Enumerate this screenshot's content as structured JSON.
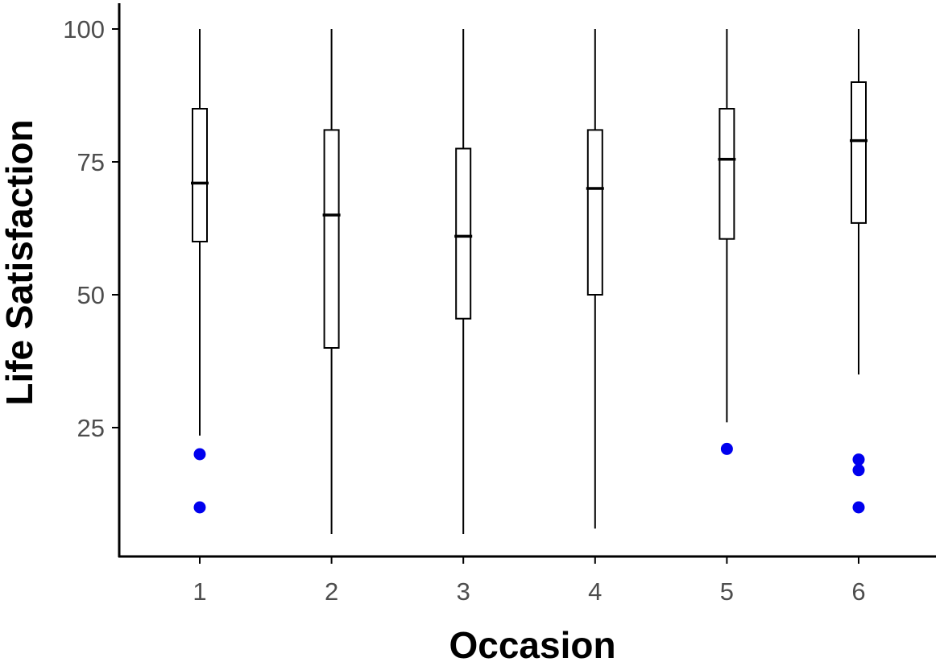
{
  "chart_data": {
    "type": "boxplot",
    "title": "",
    "xlabel": "Occasion",
    "ylabel": "Life Satisfaction",
    "categories": [
      "1",
      "2",
      "3",
      "4",
      "5",
      "6"
    ],
    "y_ticks": [
      "25",
      "50",
      "75",
      "100"
    ],
    "ylim": [
      0,
      105
    ],
    "grid": false,
    "boxes": [
      {
        "category": "1",
        "whisker_low": 23.5,
        "q1": 60,
        "median": 71,
        "q3": 85,
        "whisker_high": 100,
        "outliers": [
          20,
          10
        ]
      },
      {
        "category": "2",
        "whisker_low": 5,
        "q1": 40,
        "median": 65,
        "q3": 81,
        "whisker_high": 100,
        "outliers": []
      },
      {
        "category": "3",
        "whisker_low": 5,
        "q1": 45.5,
        "median": 61,
        "q3": 77.5,
        "whisker_high": 100,
        "outliers": []
      },
      {
        "category": "4",
        "whisker_low": 6,
        "q1": 50,
        "median": 70,
        "q3": 81,
        "whisker_high": 100,
        "outliers": []
      },
      {
        "category": "5",
        "whisker_low": 26,
        "q1": 60.5,
        "median": 75.5,
        "q3": 85,
        "whisker_high": 100,
        "outliers": [
          21
        ]
      },
      {
        "category": "6",
        "whisker_low": 35,
        "q1": 63.5,
        "median": 79,
        "q3": 90,
        "whisker_high": 100,
        "outliers": [
          19,
          17,
          10
        ]
      }
    ],
    "colors": {
      "box_stroke": "#000000",
      "outlier": "#0000ee",
      "axis": "#000000",
      "tick_label": "#4d4d4d"
    }
  }
}
